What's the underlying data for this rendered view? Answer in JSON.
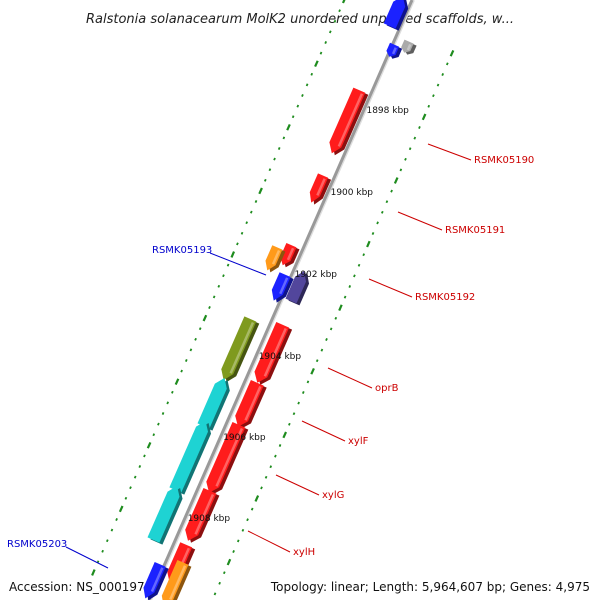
{
  "title": "Ralstonia solanacearum MolK2 unordered unplaced scaffolds, w...",
  "colors": {
    "red": "#ff1c1c",
    "blue": "#1b22ff",
    "orange": "#ff9a1a",
    "green": "#7f9a1e",
    "cyan": "#1ed3d3",
    "purple": "#52469c",
    "gray": "#aaaaaa",
    "label_red": "#cc0000",
    "label_blue": "#0000cc",
    "backbone": "#999999",
    "tick": "#1e8c1e"
  },
  "scale_labels": [
    "1898 kbp",
    "1900 kbp",
    "1902 kbp",
    "1904 kbp",
    "1906 kbp",
    "1908 kbp"
  ],
  "gene_labels": [
    {
      "text": "RSMK05190",
      "color": "red"
    },
    {
      "text": "RSMK05191",
      "color": "red"
    },
    {
      "text": "RSMK05192",
      "color": "red"
    },
    {
      "text": "oprB",
      "color": "red"
    },
    {
      "text": "xylF",
      "color": "red"
    },
    {
      "text": "xylG",
      "color": "red"
    },
    {
      "text": "xylH",
      "color": "red"
    },
    {
      "text": "RSMK05193",
      "color": "blue"
    },
    {
      "text": "RSMK05203",
      "color": "blue"
    }
  ],
  "footer": {
    "accession": "Accession: NS_000197",
    "topology": "Topology: linear; Length: 5,964,607 bp; Genes: 4,975"
  }
}
